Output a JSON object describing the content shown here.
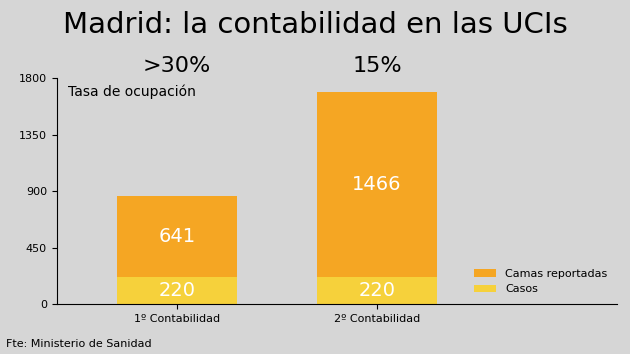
{
  "chart_data": {
    "type": "bar",
    "title": "Madrid: la contabilidad en las UCIs",
    "subtitle": "Tasa de ocupación",
    "source": "Fte: Ministerio de Sanidad",
    "categories": [
      "1º Contabilidad",
      "2º Contabilidad"
    ],
    "annotations": [
      ">30%",
      "15%"
    ],
    "series": [
      {
        "name": "Casos",
        "color": "#f6d13b",
        "values": [
          220,
          220
        ]
      },
      {
        "name": "Camas reportadas",
        "color": "#f5a623",
        "values": [
          641,
          1466
        ]
      }
    ],
    "stacked": true,
    "data_labels": true,
    "legend": "lower right",
    "grid": false,
    "ylim": [
      0,
      1800
    ],
    "yticks": [
      0,
      450,
      900,
      1350,
      1800
    ]
  }
}
